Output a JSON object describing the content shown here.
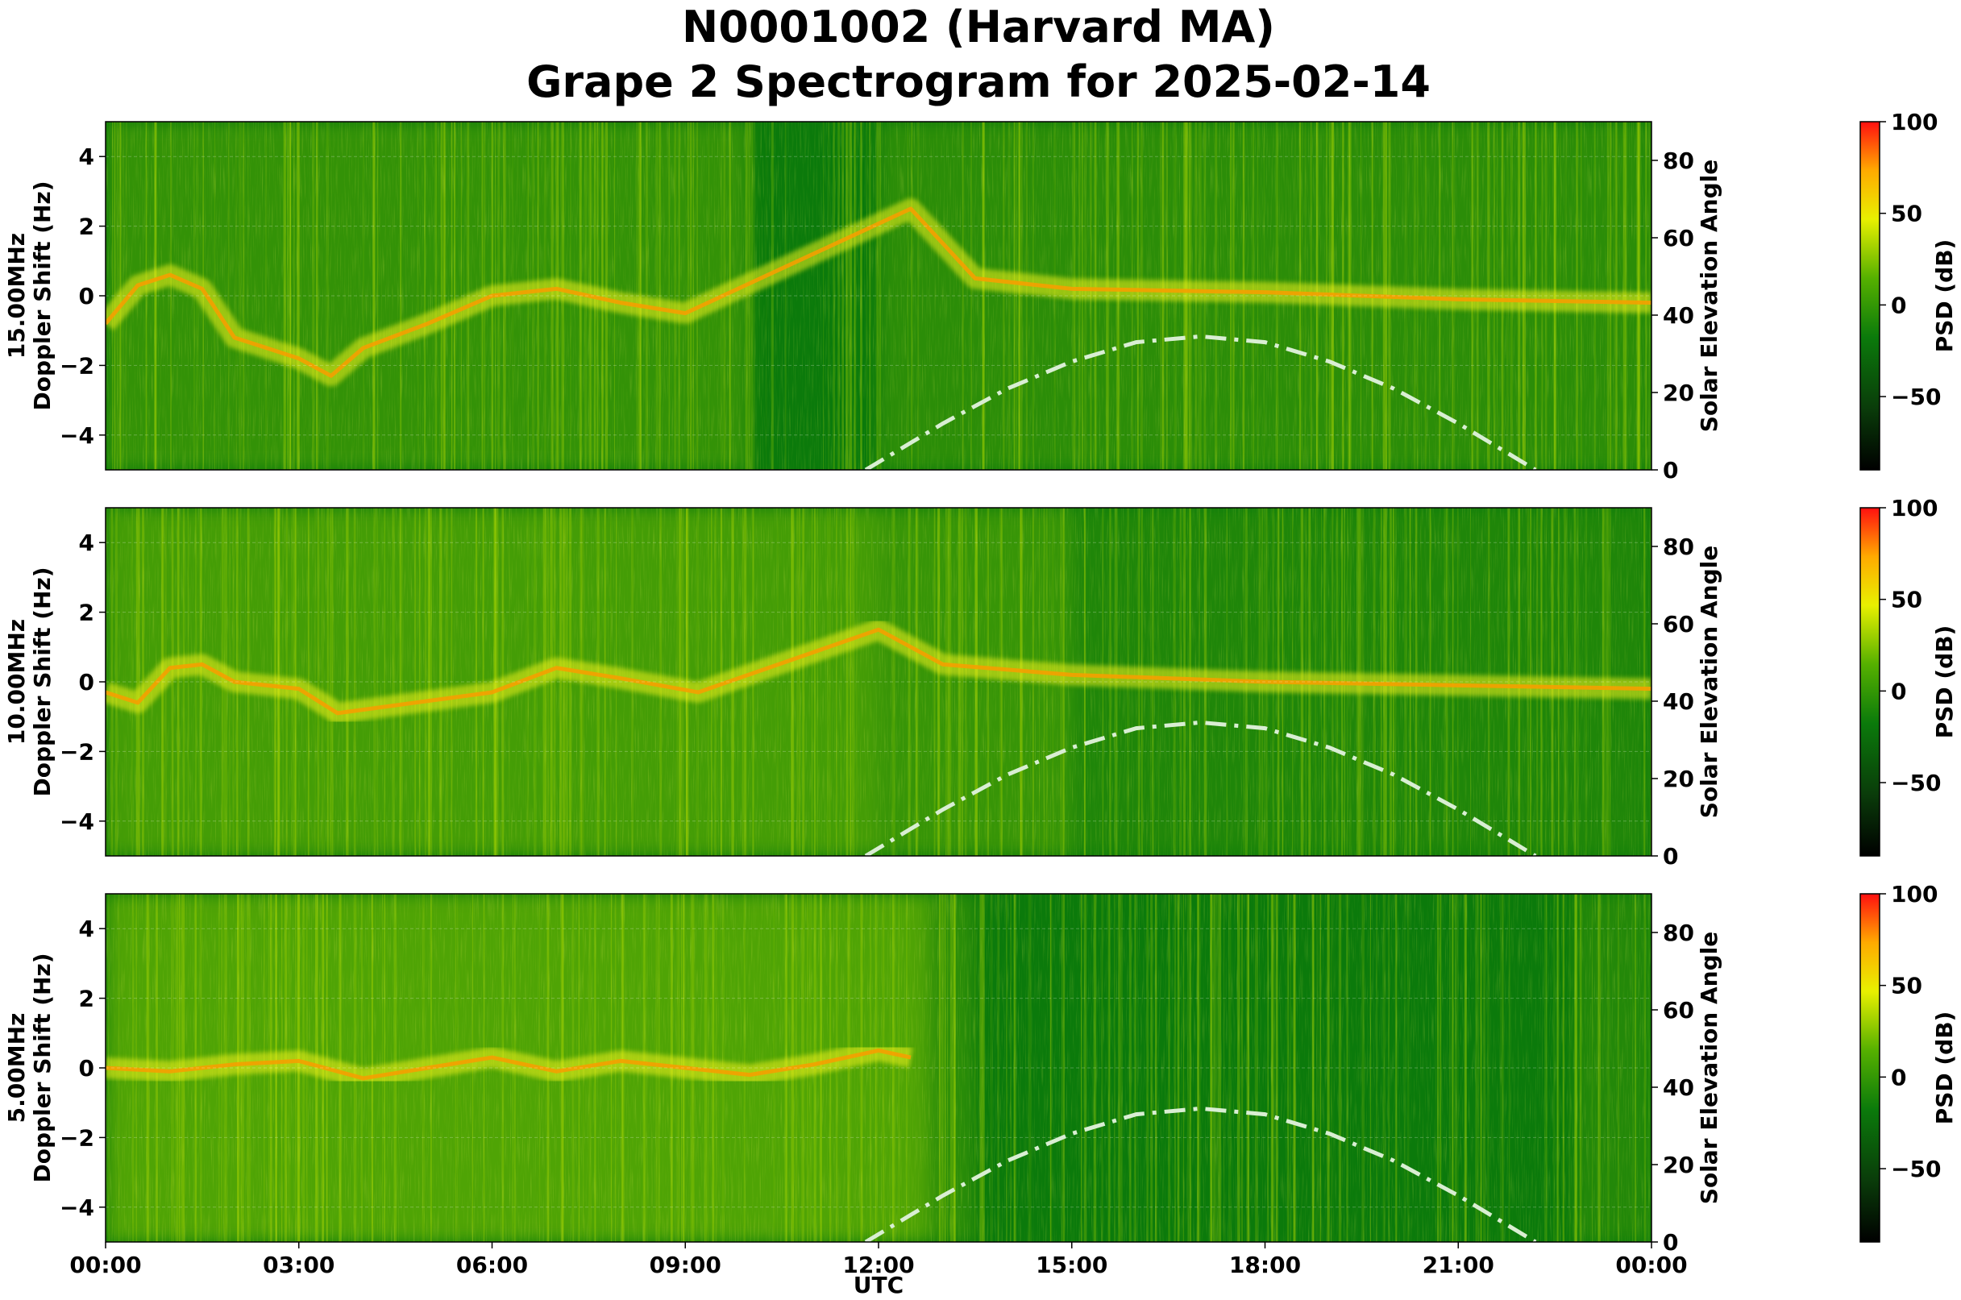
{
  "figure": {
    "title_line1": "N0001002 (Harvard MA)",
    "title_line2": "Grape 2 Spectrogram for 2025-02-14",
    "xlabel": "UTC"
  },
  "chart_data": [
    {
      "type": "heatmap",
      "panel": "15.00MHz",
      "ylabel_line1": "15.00MHz",
      "ylabel_line2": "Doppler Shift (Hz)",
      "y2label": "Solar Elevation Angle",
      "colorbar_label": "PSD (dB)",
      "ylim": [
        -5,
        5
      ],
      "y_ticks": [
        "4",
        "2",
        "0",
        "−2",
        "−4"
      ],
      "y2lim": [
        0,
        90
      ],
      "y2_ticks": [
        "0",
        "20",
        "40",
        "60",
        "80"
      ],
      "cbar_ticks": [
        "100",
        "50",
        "0",
        "−50"
      ],
      "cbar_range": [
        -90,
        100
      ],
      "doppler_trace": [
        {
          "t": 0.0,
          "f": -0.8
        },
        {
          "t": 0.5,
          "f": 0.3
        },
        {
          "t": 1.0,
          "f": 0.6
        },
        {
          "t": 1.5,
          "f": 0.2
        },
        {
          "t": 2.0,
          "f": -1.2
        },
        {
          "t": 2.5,
          "f": -1.5
        },
        {
          "t": 3.0,
          "f": -1.8
        },
        {
          "t": 3.5,
          "f": -2.3
        },
        {
          "t": 4.0,
          "f": -1.5
        },
        {
          "t": 5.0,
          "f": -0.8
        },
        {
          "t": 6.0,
          "f": 0.0
        },
        {
          "t": 7.0,
          "f": 0.2
        },
        {
          "t": 8.0,
          "f": -0.2
        },
        {
          "t": 9.0,
          "f": -0.5
        },
        {
          "t": 12.5,
          "f": 2.5
        },
        {
          "t": 13.5,
          "f": 0.5
        },
        {
          "t": 15.0,
          "f": 0.2
        },
        {
          "t": 18.0,
          "f": 0.1
        },
        {
          "t": 21.0,
          "f": -0.1
        },
        {
          "t": 24.0,
          "f": -0.2
        }
      ]
    },
    {
      "type": "heatmap",
      "panel": "10.00MHz",
      "ylabel_line1": "10.00MHz",
      "ylabel_line2": "Doppler Shift (Hz)",
      "y2label": "Solar Elevation Angle",
      "colorbar_label": "PSD (dB)",
      "ylim": [
        -5,
        5
      ],
      "y_ticks": [
        "4",
        "2",
        "0",
        "−2",
        "−4"
      ],
      "y2lim": [
        0,
        90
      ],
      "y2_ticks": [
        "0",
        "20",
        "40",
        "60",
        "80"
      ],
      "cbar_ticks": [
        "100",
        "50",
        "0",
        "−50"
      ],
      "cbar_range": [
        -90,
        100
      ],
      "doppler_trace": [
        {
          "t": 0.0,
          "f": -0.3
        },
        {
          "t": 0.5,
          "f": -0.6
        },
        {
          "t": 1.0,
          "f": 0.4
        },
        {
          "t": 1.5,
          "f": 0.5
        },
        {
          "t": 2.0,
          "f": 0.0
        },
        {
          "t": 3.0,
          "f": -0.2
        },
        {
          "t": 3.6,
          "f": -0.9
        },
        {
          "t": 6.0,
          "f": -0.3
        },
        {
          "t": 7.0,
          "f": 0.4
        },
        {
          "t": 8.0,
          "f": 0.1
        },
        {
          "t": 9.2,
          "f": -0.3
        },
        {
          "t": 12.0,
          "f": 1.5
        },
        {
          "t": 13.0,
          "f": 0.5
        },
        {
          "t": 15.0,
          "f": 0.2
        },
        {
          "t": 18.0,
          "f": 0.0
        },
        {
          "t": 21.0,
          "f": -0.1
        },
        {
          "t": 24.0,
          "f": -0.2
        }
      ]
    },
    {
      "type": "heatmap",
      "panel": "5.00MHz",
      "ylabel_line1": "5.00MHz",
      "ylabel_line2": "Doppler Shift (Hz)",
      "y2label": "Solar Elevation Angle",
      "colorbar_label": "PSD (dB)",
      "ylim": [
        -5,
        5
      ],
      "y_ticks": [
        "4",
        "2",
        "0",
        "−2",
        "−4"
      ],
      "y2lim": [
        0,
        90
      ],
      "y2_ticks": [
        "0",
        "20",
        "40",
        "60",
        "80"
      ],
      "cbar_ticks": [
        "100",
        "50",
        "0",
        "−50"
      ],
      "cbar_range": [
        -90,
        100
      ],
      "doppler_trace": [
        {
          "t": 0.0,
          "f": 0.0
        },
        {
          "t": 1.0,
          "f": -0.1
        },
        {
          "t": 2.0,
          "f": 0.1
        },
        {
          "t": 3.0,
          "f": 0.2
        },
        {
          "t": 4.0,
          "f": -0.3
        },
        {
          "t": 5.0,
          "f": 0.0
        },
        {
          "t": 6.0,
          "f": 0.3
        },
        {
          "t": 7.0,
          "f": -0.1
        },
        {
          "t": 8.0,
          "f": 0.2
        },
        {
          "t": 9.0,
          "f": 0.0
        },
        {
          "t": 10.0,
          "f": -0.2
        },
        {
          "t": 11.0,
          "f": 0.1
        },
        {
          "t": 12.0,
          "f": 0.5
        },
        {
          "t": 12.5,
          "f": 0.3
        }
      ]
    }
  ],
  "x_axis": {
    "range_hours": [
      0,
      24
    ],
    "ticks": [
      "00:00",
      "03:00",
      "06:00",
      "09:00",
      "12:00",
      "15:00",
      "18:00",
      "21:00",
      "00:00"
    ]
  },
  "solar_elevation_curve": {
    "style": "dash-dot",
    "color": "#d9eed3",
    "points": [
      {
        "t": 11.8,
        "deg": 0
      },
      {
        "t": 12.5,
        "deg": 7
      },
      {
        "t": 13.0,
        "deg": 12
      },
      {
        "t": 14.0,
        "deg": 21
      },
      {
        "t": 15.0,
        "deg": 28
      },
      {
        "t": 16.0,
        "deg": 33
      },
      {
        "t": 17.0,
        "deg": 34.5
      },
      {
        "t": 18.0,
        "deg": 33
      },
      {
        "t": 19.0,
        "deg": 28
      },
      {
        "t": 20.0,
        "deg": 21
      },
      {
        "t": 21.0,
        "deg": 12
      },
      {
        "t": 21.5,
        "deg": 7
      },
      {
        "t": 22.2,
        "deg": 0
      }
    ]
  },
  "colors": {
    "background_green": "#0b7a0b",
    "bright_band_yellow": "#f2f21a",
    "peak_red": "#f01010",
    "colormap": [
      "#000000",
      "#006400",
      "#1e8f00",
      "#9fd400",
      "#ffff00",
      "#ff8000",
      "#ff0000"
    ]
  }
}
